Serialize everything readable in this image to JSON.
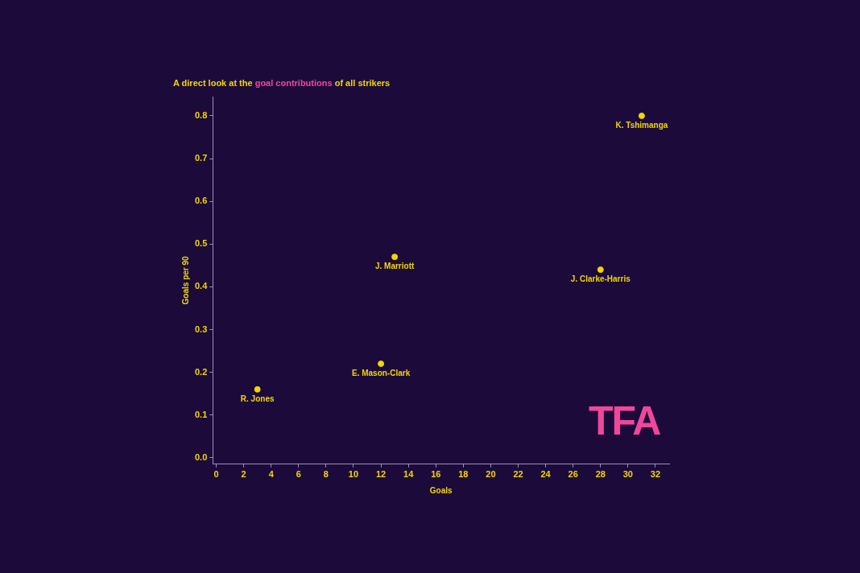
{
  "chart_data": {
    "type": "scatter",
    "title": "A direct look at the goal contributions of all strikers",
    "title_highlight": "goal contributions",
    "watermark": "TFA",
    "x_label": "Goals",
    "y_label": "Goals per 90",
    "point_labels": [
      "R. Jones",
      "E. Mason-Clark",
      "J. Marriott",
      "J. Clarke-Harris",
      "K. Tshimanga"
    ],
    "x": [
      3,
      12,
      13,
      28,
      31
    ],
    "values": [
      0.16,
      0.22,
      0.47,
      0.44,
      0.8
    ],
    "color": "#f2d500",
    "xlim": [
      -0.25,
      33
    ],
    "xticks": [
      0,
      2,
      4,
      6,
      8,
      10,
      12,
      14,
      16,
      18,
      20,
      22,
      24,
      26,
      28,
      30,
      32
    ],
    "ylim": [
      -0.015,
      0.845
    ],
    "yticks": [
      {
        "value": 0,
        "label": "0.0"
      },
      0.1,
      0.2,
      0.3,
      0.4,
      0.5,
      0.6,
      0.7,
      0.8
    ],
    "grid": false
  }
}
